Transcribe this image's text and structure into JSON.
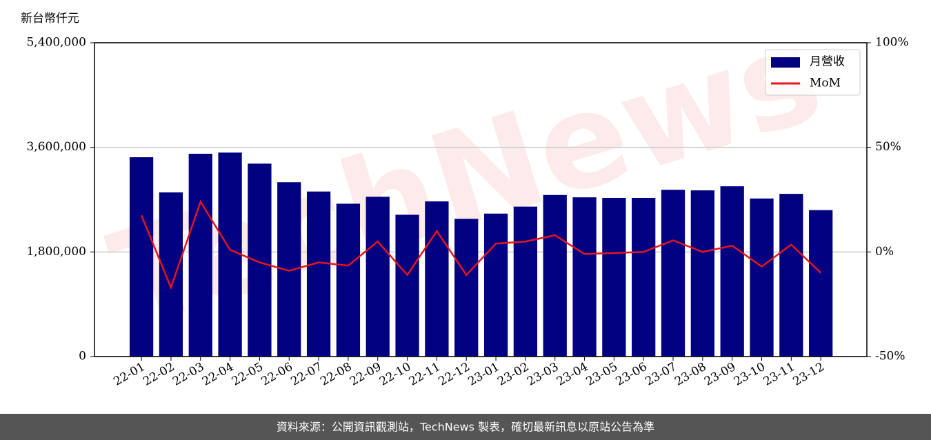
{
  "chart_data": {
    "type": "bar-line",
    "y_label": "新台幣仟元",
    "watermark": "TechNews",
    "footer": "資料來源：公開資訊觀測站，TechNews 製表，確切最新訊息以原站公告為準",
    "categories": [
      "22-01",
      "22-02",
      "22-03",
      "22-04",
      "22-05",
      "22-06",
      "22-07",
      "22-08",
      "22-09",
      "22-10",
      "22-11",
      "22-12",
      "23-01",
      "23-02",
      "23-03",
      "23-04",
      "23-05",
      "23-06",
      "23-07",
      "23-08",
      "23-09",
      "23-10",
      "23-11",
      "23-12"
    ],
    "series": [
      {
        "name": "月營收",
        "type": "bar",
        "axis": "y",
        "color": "#000080",
        "values": [
          3430000,
          2825000,
          3490000,
          3510000,
          3320000,
          3000000,
          2840000,
          2630000,
          2750000,
          2440000,
          2670000,
          2370000,
          2460000,
          2580000,
          2780000,
          2740000,
          2730000,
          2730000,
          2870000,
          2860000,
          2930000,
          2720000,
          2800000,
          2520000
        ]
      },
      {
        "name": "MoM",
        "type": "line",
        "axis": "y2",
        "color": "#e8141c",
        "values": [
          17.5,
          -17,
          24,
          1,
          -5,
          -9,
          -5,
          -6.5,
          5,
          -11,
          10,
          -11,
          4,
          5,
          8,
          -1,
          -0.5,
          0,
          5.5,
          0,
          3,
          -7,
          3.5,
          -10
        ]
      }
    ],
    "ylim": [
      0,
      5400000
    ],
    "yticks": [
      0,
      {
        "value": 1800000,
        "label": "1,800,000"
      },
      {
        "value": 3600000,
        "label": "3,600,000"
      },
      {
        "value": 5400000,
        "label": "5,400,000"
      }
    ],
    "y2lim": [
      -50,
      100
    ],
    "y2ticks": [
      {
        "value": -50,
        "label": "-50%"
      },
      {
        "value": 0,
        "label": "0%"
      },
      {
        "value": 50,
        "label": "50%"
      },
      {
        "value": 100,
        "label": "100%"
      }
    ],
    "grid": true,
    "legend": "upper right"
  }
}
